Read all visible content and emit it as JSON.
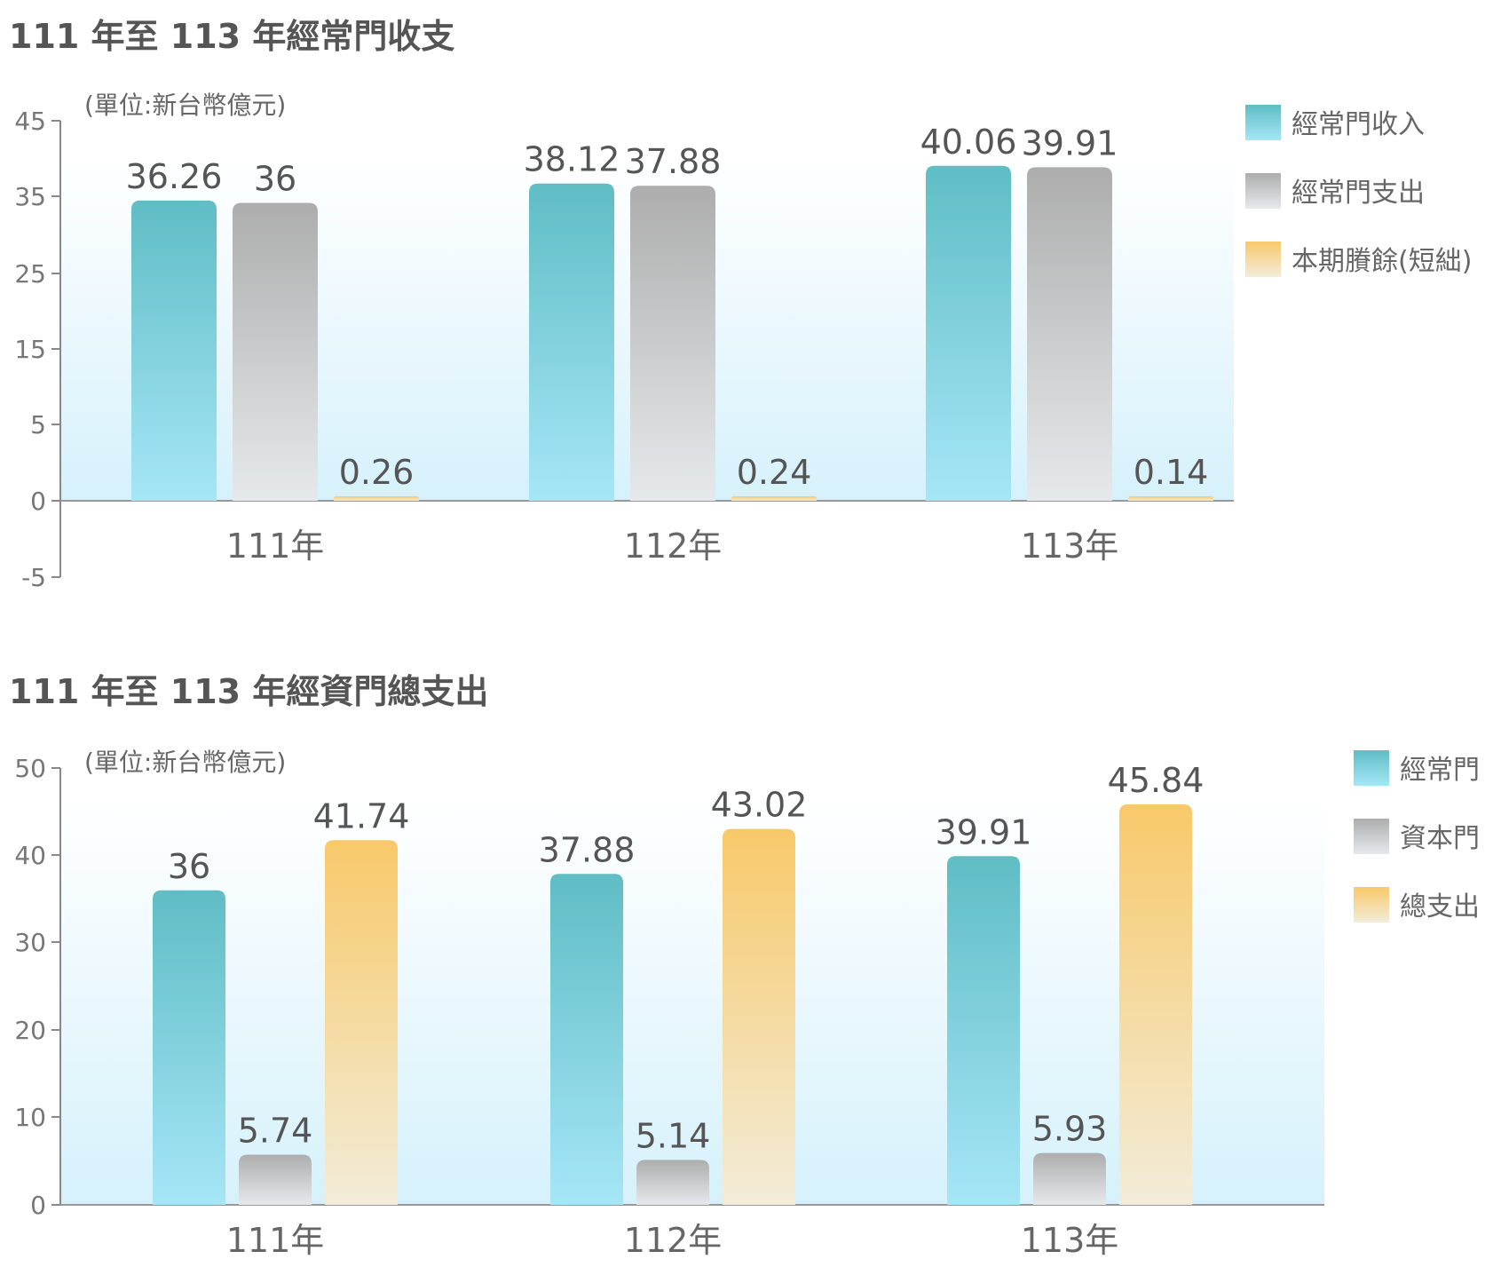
{
  "charts": {
    "chart1_title": "111 年至 113 年經常門收支",
    "chart2_title": "111 年至 113 年經資門總支出"
  },
  "colors": {
    "teal": "#5fbfc6",
    "gray": "#b3b3b3",
    "orange": "#f7c96a",
    "plot_bg": "#d6f1fb"
  },
  "chart_data": [
    {
      "type": "bar",
      "title": "111 年至 113 年經常門收支",
      "unit": "(單位:新台幣億元)",
      "categories": [
        "111年",
        "112年",
        "113年"
      ],
      "series": [
        {
          "name": "經常門收入",
          "values": [
            36.26,
            38.12,
            40.06
          ],
          "labels": [
            "36.26",
            "38.12",
            "40.06"
          ],
          "color": "teal"
        },
        {
          "name": "經常門支出",
          "values": [
            36,
            37.88,
            39.91
          ],
          "labels": [
            "36",
            "37.88",
            "39.91"
          ],
          "color": "gray"
        },
        {
          "name": "本期賸餘(短絀)",
          "values": [
            0.26,
            0.24,
            0.14
          ],
          "labels": [
            "0.26",
            "0.24",
            "0.14"
          ],
          "color": "orange"
        }
      ],
      "yticks": [
        "45",
        "35",
        "25",
        "15",
        "5",
        "0",
        "-5"
      ],
      "ylim": [
        -5,
        45
      ],
      "legend_position": "right"
    },
    {
      "type": "bar",
      "title": "111 年至 113 年經資門總支出",
      "unit": "(單位:新台幣億元)",
      "categories": [
        "111年",
        "112年",
        "113年"
      ],
      "series": [
        {
          "name": "經常門",
          "values": [
            36,
            37.88,
            39.91
          ],
          "labels": [
            "36",
            "37.88",
            "39.91"
          ],
          "color": "teal"
        },
        {
          "name": "資本門",
          "values": [
            5.74,
            5.14,
            5.93
          ],
          "labels": [
            "5.74",
            "5.14",
            "5.93"
          ],
          "color": "gray"
        },
        {
          "name": "總支出",
          "values": [
            41.74,
            43.02,
            45.84
          ],
          "labels": [
            "41.74",
            "43.02",
            "45.84"
          ],
          "color": "orange"
        }
      ],
      "yticks": [
        "50",
        "40",
        "30",
        "20",
        "10",
        "0"
      ],
      "ylim": [
        0,
        50
      ],
      "legend_position": "right"
    }
  ]
}
